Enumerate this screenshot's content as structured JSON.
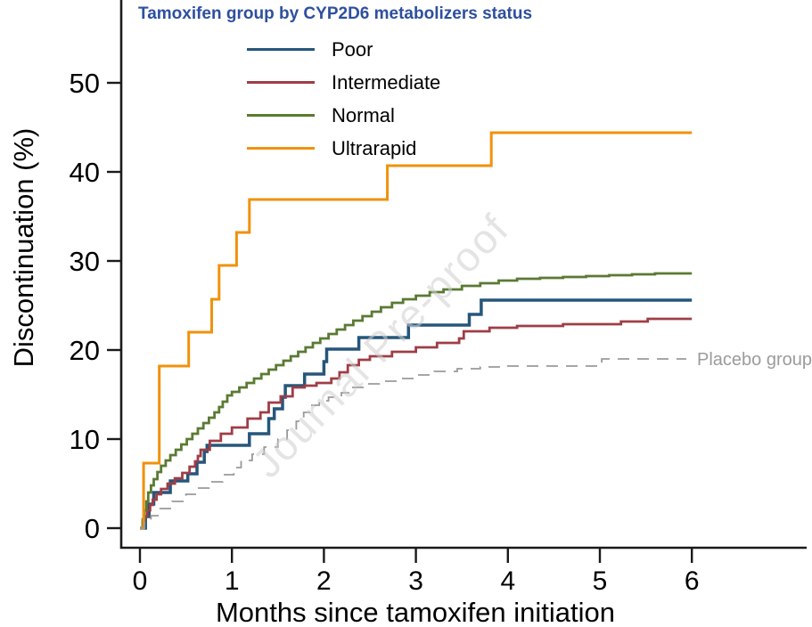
{
  "chart_data": {
    "type": "line",
    "subtype": "step",
    "legend_title": "Tamoxifen group by CYP2D6 metabolizers status",
    "legend_title_color": "#2d4f9e",
    "xlabel": "Months since tamoxifen initiation",
    "ylabel": "Discontinuation (%)",
    "watermark": "Journal Pre-proof",
    "watermark_color": "#cfcfcf",
    "axis_color": "#1a1a1a",
    "placebo_label_color": "#9b9b9b",
    "xticks": [
      0,
      1,
      2,
      3,
      4,
      5,
      6
    ],
    "yticks": [
      0,
      10,
      20,
      30,
      40,
      50
    ],
    "xlim": [
      0,
      7.25
    ],
    "ylim": [
      0,
      59
    ],
    "grid": false,
    "legend_position": "top-left-inside",
    "series": [
      {
        "name": "Poor",
        "color": "#26567b",
        "width": 3.5,
        "dash": null,
        "points": [
          [
            0,
            0
          ],
          [
            0.06,
            1.3
          ],
          [
            0.1,
            2.7
          ],
          [
            0.15,
            4.0
          ],
          [
            0.33,
            5.3
          ],
          [
            0.52,
            6.1
          ],
          [
            0.62,
            7.4
          ],
          [
            0.7,
            8.6
          ],
          [
            0.73,
            9.3
          ],
          [
            1.19,
            10.6
          ],
          [
            1.4,
            12.3
          ],
          [
            1.46,
            13.4
          ],
          [
            1.55,
            14.7
          ],
          [
            1.58,
            16.0
          ],
          [
            1.79,
            17.3
          ],
          [
            2.0,
            18.7
          ],
          [
            2.03,
            20.1
          ],
          [
            2.38,
            21.4
          ],
          [
            2.92,
            22.8
          ],
          [
            3.58,
            24.0
          ],
          [
            3.71,
            25.6
          ],
          [
            6.0,
            25.6
          ]
        ]
      },
      {
        "name": "Intermediate",
        "color": "#9f3d46",
        "width": 2.8,
        "dash": null,
        "points": [
          [
            0,
            0
          ],
          [
            0.03,
            0.7
          ],
          [
            0.05,
            1.3
          ],
          [
            0.08,
            2.0
          ],
          [
            0.11,
            2.6
          ],
          [
            0.14,
            3.2
          ],
          [
            0.18,
            3.8
          ],
          [
            0.23,
            4.4
          ],
          [
            0.3,
            5.0
          ],
          [
            0.38,
            5.6
          ],
          [
            0.46,
            6.2
          ],
          [
            0.54,
            6.9
          ],
          [
            0.6,
            7.5
          ],
          [
            0.63,
            8.1
          ],
          [
            0.66,
            8.8
          ],
          [
            0.76,
            9.8
          ],
          [
            0.88,
            10.6
          ],
          [
            1.0,
            11.3
          ],
          [
            1.17,
            12.3
          ],
          [
            1.31,
            13.0
          ],
          [
            1.4,
            14.1
          ],
          [
            1.53,
            14.8
          ],
          [
            1.66,
            15.8
          ],
          [
            1.79,
            16.0
          ],
          [
            1.92,
            16.3
          ],
          [
            2.08,
            16.8
          ],
          [
            2.17,
            17.5
          ],
          [
            2.26,
            18.3
          ],
          [
            2.38,
            18.9
          ],
          [
            2.5,
            19.3
          ],
          [
            2.74,
            19.8
          ],
          [
            3.0,
            20.3
          ],
          [
            3.23,
            20.8
          ],
          [
            3.47,
            21.3
          ],
          [
            3.52,
            22.1
          ],
          [
            3.8,
            22.5
          ],
          [
            4.1,
            22.7
          ],
          [
            4.6,
            22.9
          ],
          [
            5.23,
            23.2
          ],
          [
            5.52,
            23.5
          ],
          [
            6.0,
            23.5
          ]
        ]
      },
      {
        "name": "Normal",
        "color": "#5a7a33",
        "width": 2.8,
        "dash": null,
        "points": [
          [
            0,
            0
          ],
          [
            0.03,
            1.0
          ],
          [
            0.05,
            2.0
          ],
          [
            0.07,
            3.0
          ],
          [
            0.09,
            4.0
          ],
          [
            0.12,
            4.8
          ],
          [
            0.15,
            5.5
          ],
          [
            0.19,
            6.3
          ],
          [
            0.23,
            7.0
          ],
          [
            0.28,
            7.6
          ],
          [
            0.33,
            8.2
          ],
          [
            0.39,
            8.8
          ],
          [
            0.45,
            9.4
          ],
          [
            0.51,
            10.0
          ],
          [
            0.57,
            10.6
          ],
          [
            0.63,
            11.2
          ],
          [
            0.69,
            11.8
          ],
          [
            0.75,
            12.4
          ],
          [
            0.81,
            13.0
          ],
          [
            0.86,
            13.6
          ],
          [
            0.9,
            14.2
          ],
          [
            0.95,
            14.9
          ],
          [
            1.0,
            15.3
          ],
          [
            1.08,
            15.8
          ],
          [
            1.16,
            16.3
          ],
          [
            1.24,
            16.8
          ],
          [
            1.32,
            17.3
          ],
          [
            1.4,
            17.8
          ],
          [
            1.48,
            18.3
          ],
          [
            1.56,
            18.8
          ],
          [
            1.64,
            19.3
          ],
          [
            1.72,
            19.8
          ],
          [
            1.8,
            20.3
          ],
          [
            1.88,
            20.8
          ],
          [
            1.96,
            21.3
          ],
          [
            2.05,
            21.8
          ],
          [
            2.14,
            22.3
          ],
          [
            2.23,
            22.8
          ],
          [
            2.32,
            23.3
          ],
          [
            2.42,
            23.8
          ],
          [
            2.52,
            24.3
          ],
          [
            2.62,
            24.8
          ],
          [
            2.74,
            25.3
          ],
          [
            2.86,
            25.7
          ],
          [
            3.0,
            26.1
          ],
          [
            3.15,
            26.5
          ],
          [
            3.3,
            26.8
          ],
          [
            3.5,
            27.2
          ],
          [
            3.7,
            27.5
          ],
          [
            3.9,
            27.8
          ],
          [
            4.1,
            28.0
          ],
          [
            4.35,
            28.1
          ],
          [
            4.6,
            28.2
          ],
          [
            4.85,
            28.3
          ],
          [
            5.1,
            28.4
          ],
          [
            5.35,
            28.5
          ],
          [
            5.6,
            28.6
          ],
          [
            6.0,
            28.6
          ]
        ]
      },
      {
        "name": "Ultrarapid",
        "color": "#ef920d",
        "width": 3,
        "dash": null,
        "points": [
          [
            0,
            0
          ],
          [
            0.04,
            7.3
          ],
          [
            0.21,
            18.2
          ],
          [
            0.53,
            22.0
          ],
          [
            0.78,
            25.7
          ],
          [
            0.86,
            29.5
          ],
          [
            1.05,
            33.2
          ],
          [
            1.19,
            36.9
          ],
          [
            2.69,
            40.7
          ],
          [
            3.82,
            44.4
          ],
          [
            6.0,
            44.4
          ]
        ]
      },
      {
        "name": "Placebo group",
        "color": "#999999",
        "width": 1.8,
        "dash": "13,9",
        "in_legend": false,
        "points": [
          [
            0,
            0
          ],
          [
            0.05,
            0.7
          ],
          [
            0.12,
            1.4
          ],
          [
            0.22,
            2.2
          ],
          [
            0.35,
            3.0
          ],
          [
            0.5,
            3.8
          ],
          [
            0.62,
            4.5
          ],
          [
            0.75,
            5.2
          ],
          [
            0.9,
            6.0
          ],
          [
            1.02,
            6.8
          ],
          [
            1.1,
            7.6
          ],
          [
            1.22,
            8.3
          ],
          [
            1.35,
            9.1
          ],
          [
            1.5,
            10.0
          ],
          [
            1.6,
            11.0
          ],
          [
            1.7,
            12.0
          ],
          [
            1.78,
            13.0
          ],
          [
            1.85,
            13.8
          ],
          [
            1.95,
            14.3
          ],
          [
            2.05,
            14.7
          ],
          [
            2.19,
            15.2
          ],
          [
            2.3,
            15.8
          ],
          [
            2.45,
            16.2
          ],
          [
            2.6,
            16.5
          ],
          [
            2.8,
            16.8
          ],
          [
            3.0,
            17.2
          ],
          [
            3.2,
            17.6
          ],
          [
            3.45,
            17.9
          ],
          [
            3.7,
            18.1
          ],
          [
            4.0,
            18.2
          ],
          [
            5.02,
            19.0
          ],
          [
            5.94,
            19.0
          ]
        ]
      }
    ]
  }
}
